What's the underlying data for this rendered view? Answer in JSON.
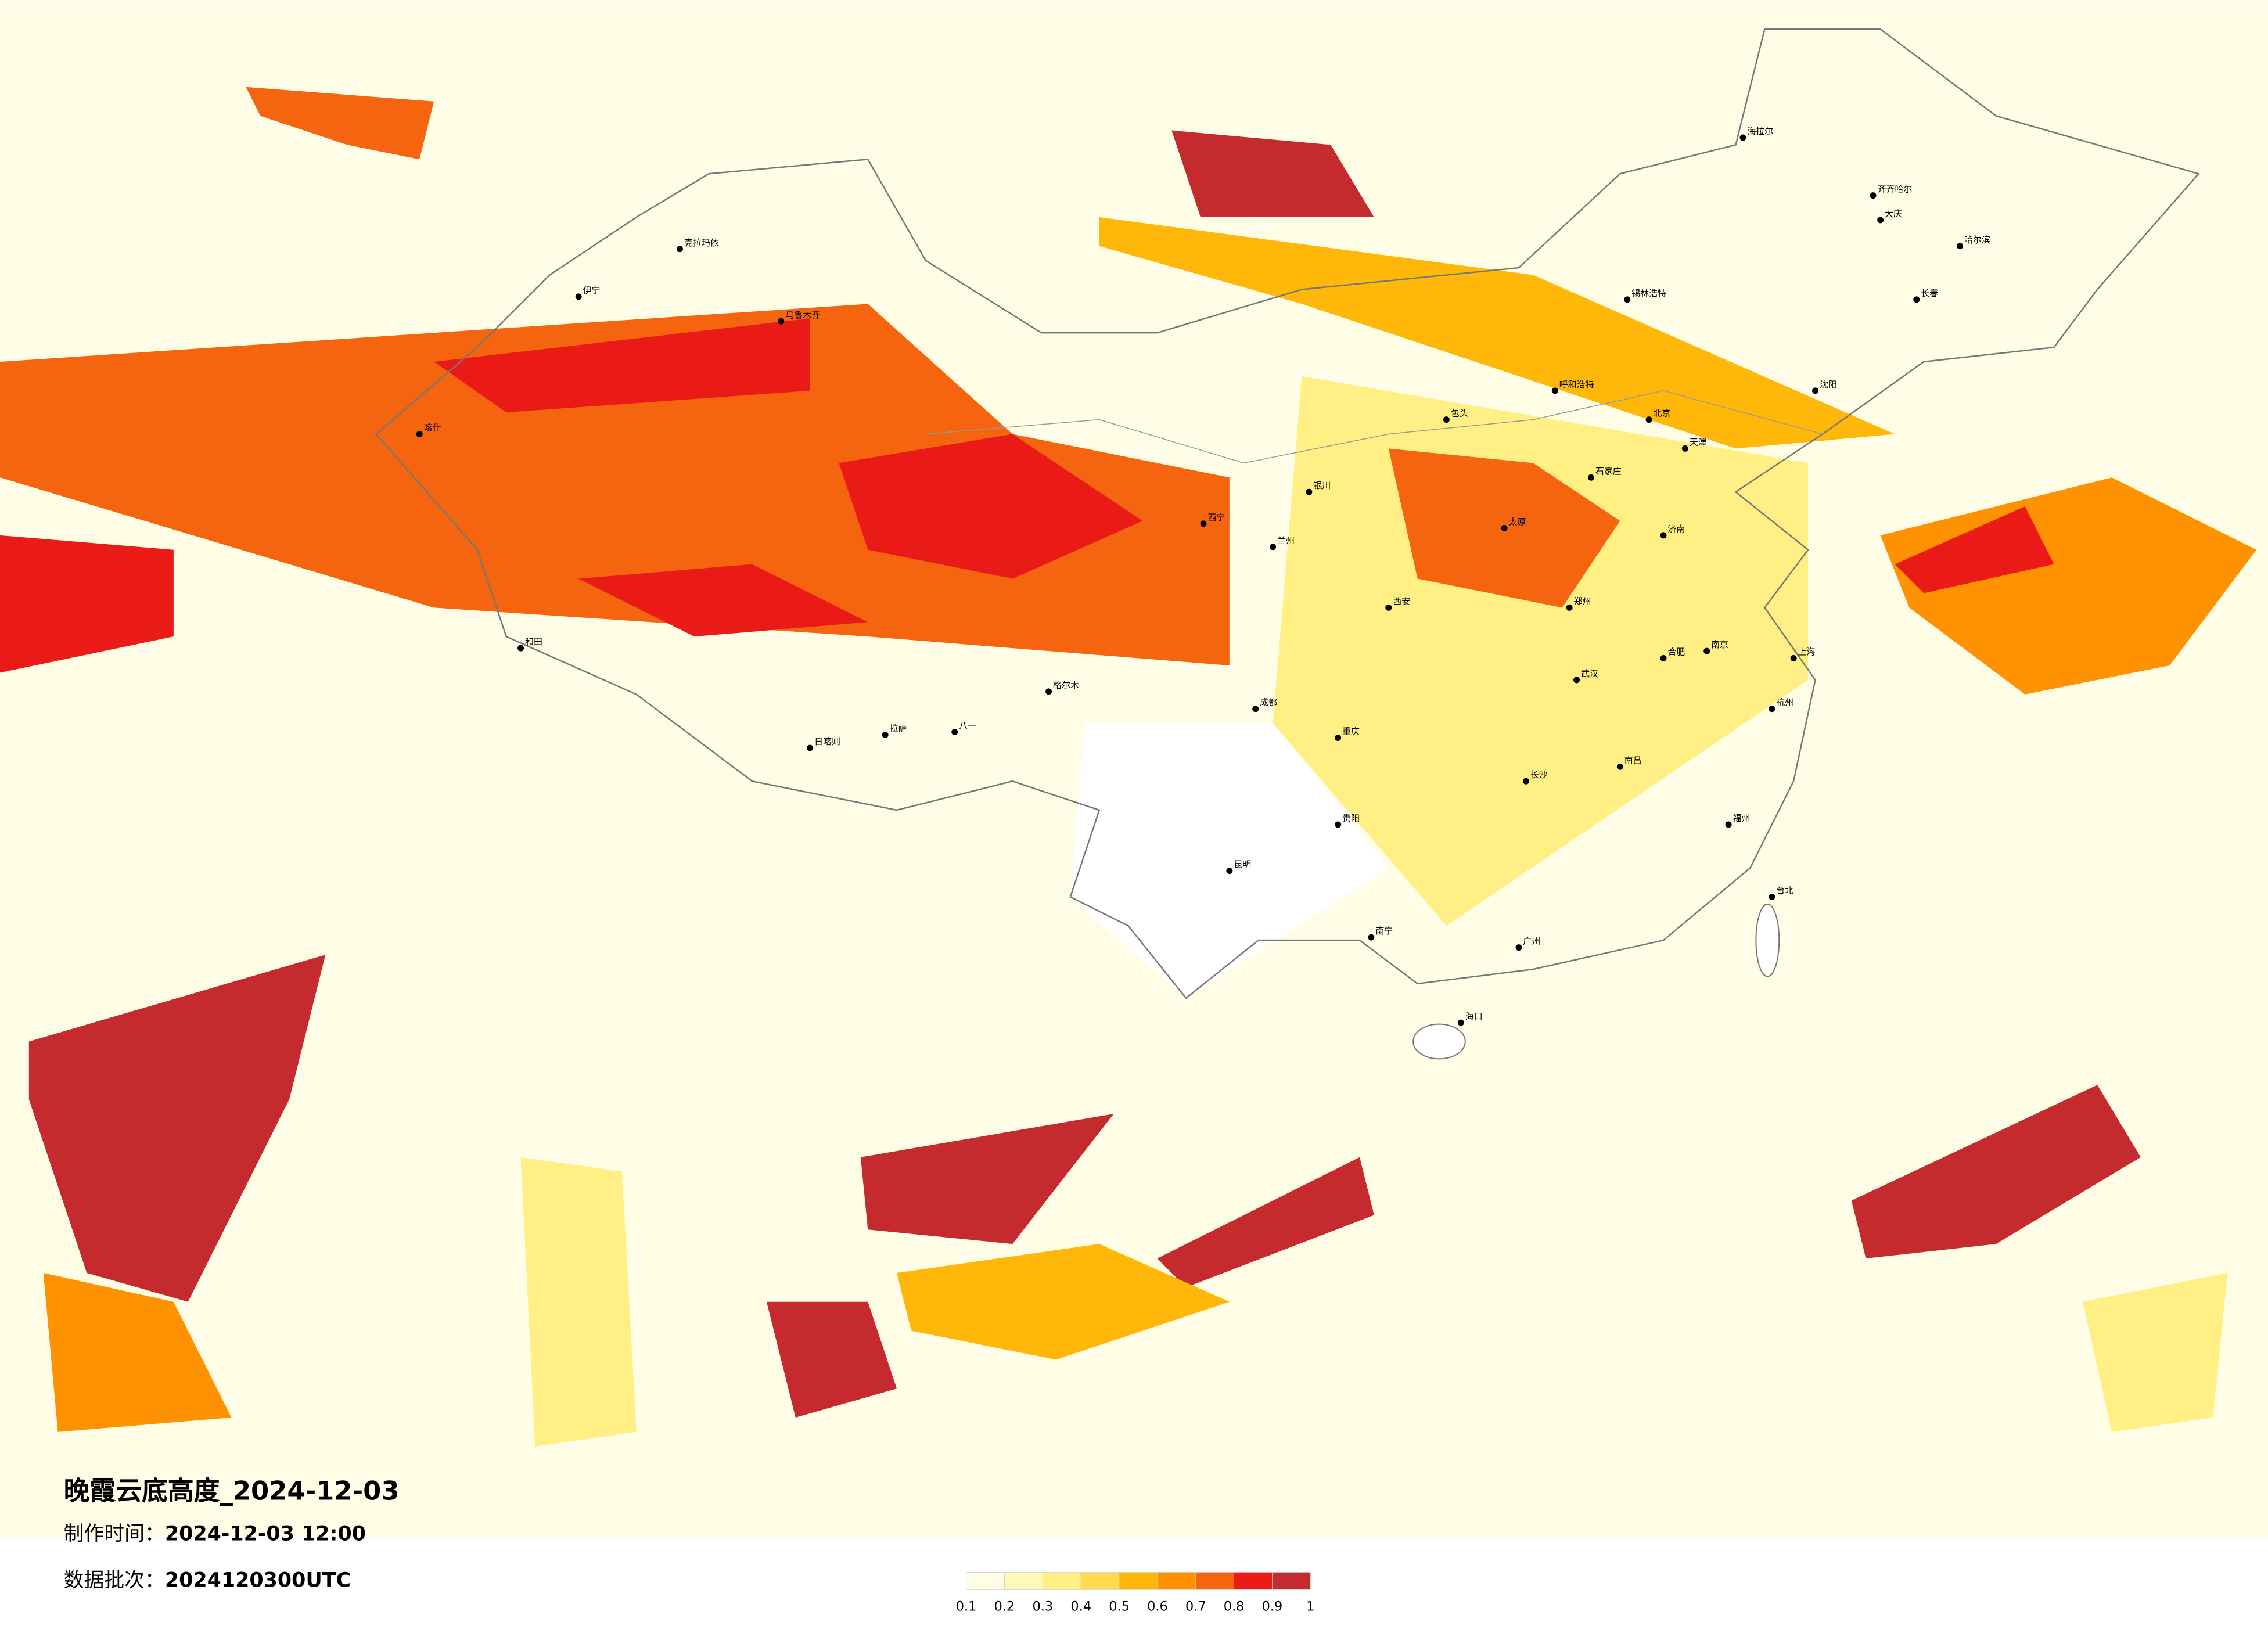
{
  "header": {
    "title": "晚霞云底高度_2024-12-03",
    "made_label": "制作时间：",
    "made_time": "2024-12-03 12:00",
    "batch_label": "数据批次：",
    "batch_value": "2024120300UTC"
  },
  "colorbar": {
    "ticks": [
      0.1,
      0.2,
      0.3,
      0.4,
      0.5,
      0.6,
      0.7,
      0.8,
      0.9,
      1
    ],
    "colors": [
      "#fffde3",
      "#fff8b8",
      "#ffef85",
      "#ffdc4f",
      "#ffb80a",
      "#ff9200",
      "#f5640f",
      "#ea1a17",
      "#c42a2e"
    ]
  },
  "cities": [
    "乌鲁木齐",
    "克拉玛依",
    "伊宁",
    "喀什",
    "和田",
    "日喀则",
    "拉萨",
    "八一",
    "格尔木",
    "西宁",
    "兰州",
    "银川",
    "呼和浩特",
    "包头",
    "北京",
    "天津",
    "石家庄",
    "太原",
    "济南",
    "郑州",
    "西安",
    "成都",
    "重庆",
    "贵阳",
    "昆明",
    "南宁",
    "广州",
    "海口",
    "长沙",
    "武汉",
    "南京",
    "上海",
    "杭州",
    "福州",
    "台北",
    "南昌",
    "合肥",
    "沈阳",
    "长春",
    "哈尔滨",
    "锡林浩特",
    "海拉尔",
    "齐齐哈尔",
    "大庆"
  ]
}
